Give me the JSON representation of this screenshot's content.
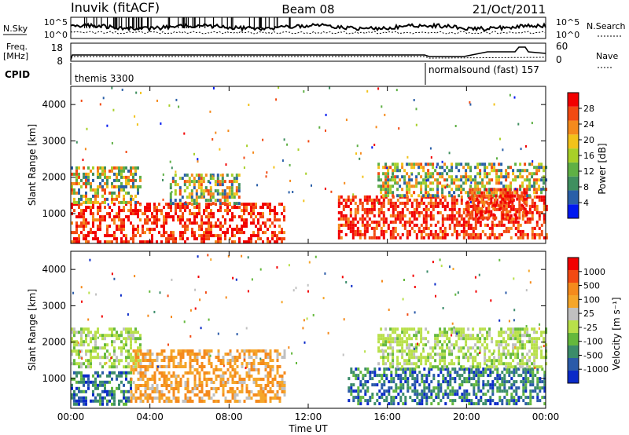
{
  "header": {
    "station": "Inuvik (fitACF)",
    "beam": "Beam 08",
    "date": "21/Oct/2011"
  },
  "noise_panel": {
    "left_label": "N.Sky",
    "right_label": "N.Search",
    "left_ticks": [
      "10^5",
      "10^0"
    ],
    "right_ticks": [
      "10^5",
      "10^0"
    ]
  },
  "freq_panel": {
    "left_label_1": "Freq.",
    "left_label_2": "[MHz]",
    "right_label": "Nave",
    "left_ticks": [
      "18",
      "8"
    ],
    "right_ticks": [
      "60",
      "0"
    ]
  },
  "cpid_panel": {
    "label": "CPID",
    "mode_1": "themis 3300",
    "mode_2": "normalsound (fast) 157"
  },
  "colors": {
    "power_scale": [
      "#0018f0",
      "#2a5fa8",
      "#3f8f5f",
      "#5fb045",
      "#a8d028",
      "#f2c21a",
      "#f58a1c",
      "#f24a12",
      "#f20000"
    ],
    "velocity_scale": [
      "#f20000",
      "#f24a12",
      "#f58a1c",
      "#f5a62a",
      "#c0c0c0",
      "#b8e04a",
      "#64b83c",
      "#3b8c6a",
      "#2a5aa8",
      "#0a2ac8"
    ]
  },
  "chart_data": [
    {
      "type": "heatmap",
      "title": "",
      "xlabel": "",
      "ylabel": "Slant Range [km]",
      "colorbar_label": "Power [dB]",
      "colorbar_ticks": [
        "28",
        "24",
        "20",
        "16",
        "12",
        "8",
        "4"
      ],
      "x_ticks": [
        "00:00",
        "04:00",
        "08:00",
        "12:00",
        "16:00",
        "20:00",
        "00:00"
      ],
      "y_ticks": [
        "4000",
        "3000",
        "2000",
        "1000"
      ],
      "xlim": [
        0,
        24
      ],
      "ylim": [
        180,
        4500
      ],
      "echo_bands": [
        {
          "t0": 0.0,
          "t1": 10.8,
          "r0": 200,
          "r1": 1300,
          "level": "high"
        },
        {
          "t0": 0.0,
          "t1": 3.5,
          "r0": 1300,
          "r1": 2300,
          "level": "mid"
        },
        {
          "t0": 5.0,
          "t1": 8.5,
          "r0": 1300,
          "r1": 2100,
          "level": "mid"
        },
        {
          "t0": 13.5,
          "t1": 24.0,
          "r0": 300,
          "r1": 1500,
          "level": "high"
        },
        {
          "t0": 15.5,
          "t1": 24.0,
          "r0": 1500,
          "r1": 2400,
          "level": "mid"
        },
        {
          "t0": 20.0,
          "t1": 23.0,
          "r0": 900,
          "r1": 1700,
          "level": "high"
        }
      ]
    },
    {
      "type": "heatmap",
      "title": "",
      "xlabel": "Time UT",
      "ylabel": "Slant Range [km]",
      "colorbar_label": "Velocity [m s⁻¹]",
      "colorbar_ticks": [
        "1000",
        "500",
        "100",
        "25",
        "-25",
        "-100",
        "-500",
        "-1000"
      ],
      "x_ticks": [
        "00:00",
        "04:00",
        "08:00",
        "12:00",
        "16:00",
        "20:00",
        "00:00"
      ],
      "y_ticks": [
        "4000",
        "3000",
        "2000",
        "1000"
      ],
      "xlim": [
        0,
        24
      ],
      "ylim": [
        180,
        4500
      ],
      "echo_bands": [
        {
          "t0": 0.0,
          "t1": 3.0,
          "r0": 300,
          "r1": 1200,
          "level": "neg"
        },
        {
          "t0": 0.0,
          "t1": 3.5,
          "r0": 1300,
          "r1": 2400,
          "level": "zero"
        },
        {
          "t0": 3.0,
          "t1": 10.8,
          "r0": 400,
          "r1": 1800,
          "level": "pos"
        },
        {
          "t0": 14.0,
          "t1": 24.0,
          "r0": 300,
          "r1": 1300,
          "level": "neg"
        },
        {
          "t0": 15.5,
          "t1": 24.0,
          "r0": 1300,
          "r1": 2400,
          "level": "zero"
        }
      ]
    }
  ]
}
